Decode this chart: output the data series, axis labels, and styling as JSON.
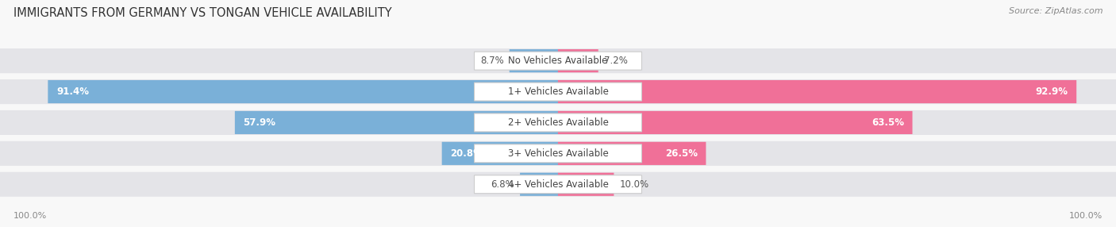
{
  "title": "IMMIGRANTS FROM GERMANY VS TONGAN VEHICLE AVAILABILITY",
  "source": "Source: ZipAtlas.com",
  "categories": [
    "No Vehicles Available",
    "1+ Vehicles Available",
    "2+ Vehicles Available",
    "3+ Vehicles Available",
    "4+ Vehicles Available"
  ],
  "germany_values": [
    8.7,
    91.4,
    57.9,
    20.8,
    6.8
  ],
  "tongan_values": [
    7.2,
    92.9,
    63.5,
    26.5,
    10.0
  ],
  "germany_color": "#7ab0d8",
  "germany_color_dark": "#4a90c8",
  "tongan_color": "#f07098",
  "tongan_color_light": "#f4a0bc",
  "bar_bg_color": "#e4e4e8",
  "figsize": [
    14.06,
    2.86
  ],
  "dpi": 100,
  "title_fontsize": 10.5,
  "source_fontsize": 8,
  "value_fontsize": 8.5,
  "category_fontsize": 8.5,
  "legend_fontsize": 8.5,
  "footer_fontsize": 8
}
